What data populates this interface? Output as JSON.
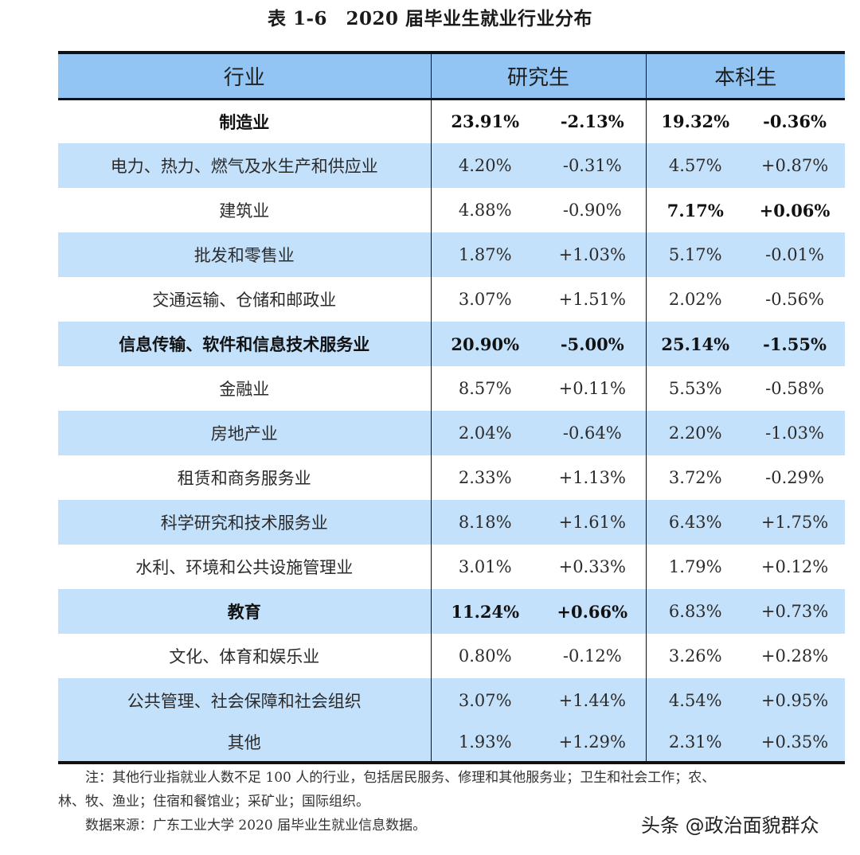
{
  "title": "表 1-6　2020 届毕业生就业行业分布",
  "table": {
    "headers": {
      "industry": "行业",
      "graduate": "研究生",
      "undergraduate": "本科生"
    },
    "rows": [
      {
        "industry": "制造业",
        "grad_pct": "23.91%",
        "grad_chg": "-2.13%",
        "ug_pct": "19.32%",
        "ug_chg": "-0.36%"
      },
      {
        "industry": "电力、热力、燃气及水生产和供应业",
        "grad_pct": "4.20%",
        "grad_chg": "-0.31%",
        "ug_pct": "4.57%",
        "ug_chg": "+0.87%"
      },
      {
        "industry": "建筑业",
        "grad_pct": "4.88%",
        "grad_chg": "-0.90%",
        "ug_pct": "7.17%",
        "ug_chg": "+0.06%"
      },
      {
        "industry": "批发和零售业",
        "grad_pct": "1.87%",
        "grad_chg": "+1.03%",
        "ug_pct": "5.17%",
        "ug_chg": "-0.01%"
      },
      {
        "industry": "交通运输、仓储和邮政业",
        "grad_pct": "3.07%",
        "grad_chg": "+1.51%",
        "ug_pct": "2.02%",
        "ug_chg": "-0.56%"
      },
      {
        "industry": "信息传输、软件和信息技术服务业",
        "grad_pct": "20.90%",
        "grad_chg": "-5.00%",
        "ug_pct": "25.14%",
        "ug_chg": "-1.55%"
      },
      {
        "industry": "金融业",
        "grad_pct": "8.57%",
        "grad_chg": "+0.11%",
        "ug_pct": "5.53%",
        "ug_chg": "-0.58%"
      },
      {
        "industry": "房地产业",
        "grad_pct": "2.04%",
        "grad_chg": "-0.64%",
        "ug_pct": "2.20%",
        "ug_chg": "-1.03%"
      },
      {
        "industry": "租赁和商务服务业",
        "grad_pct": "2.33%",
        "grad_chg": "+1.13%",
        "ug_pct": "3.72%",
        "ug_chg": "-0.29%"
      },
      {
        "industry": "科学研究和技术服务业",
        "grad_pct": "8.18%",
        "grad_chg": "+1.61%",
        "ug_pct": "6.43%",
        "ug_chg": "+1.75%"
      },
      {
        "industry": "水利、环境和公共设施管理业",
        "grad_pct": "3.01%",
        "grad_chg": "+0.33%",
        "ug_pct": "1.79%",
        "ug_chg": "+0.12%"
      },
      {
        "industry": "教育",
        "grad_pct": "11.24%",
        "grad_chg": "+0.66%",
        "ug_pct": "6.83%",
        "ug_chg": "+0.73%"
      },
      {
        "industry": "文化、体育和娱乐业",
        "grad_pct": "0.80%",
        "grad_chg": "-0.12%",
        "ug_pct": "3.26%",
        "ug_chg": "+0.28%"
      },
      {
        "industry": "公共管理、社会保障和社会组织",
        "grad_pct": "3.07%",
        "grad_chg": "+1.44%",
        "ug_pct": "4.54%",
        "ug_chg": "+0.95%"
      },
      {
        "industry": "其他",
        "grad_pct": "1.93%",
        "grad_chg": "+1.29%",
        "ug_pct": "2.31%",
        "ug_chg": "+0.35%"
      }
    ]
  },
  "notes": {
    "note_line1": "注：其他行业指就业人数不足 100 人的行业，包括居民服务、修理和其他服务业；卫生和社会工作；农、",
    "note_line2": "林、牧、渔业；住宿和餐馆业；采矿业；国际组织。",
    "source": "数据来源：广东工业大学 2020 届毕业生就业信息数据。"
  },
  "watermark": "头条 @政治面貌群众",
  "colors": {
    "header_bg": "#93c5f4",
    "shaded_row_bg": "#c4e1fb",
    "rule": "#111111"
  }
}
